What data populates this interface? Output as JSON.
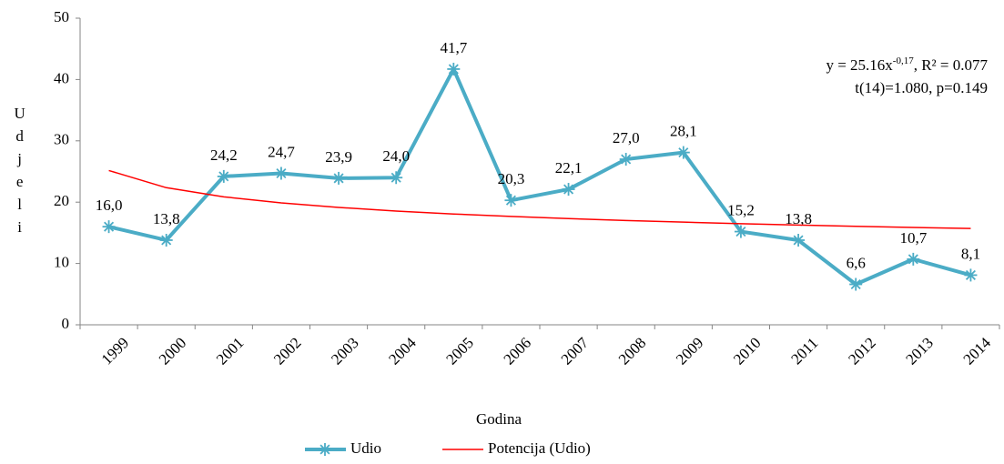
{
  "chart_data": {
    "type": "line",
    "xlabel": "Godina",
    "ylabel": "Udjeli",
    "categories": [
      "1999",
      "2000",
      "2001",
      "2002",
      "2003",
      "2004",
      "2005",
      "2006",
      "2007",
      "2008",
      "2009",
      "2010",
      "2011",
      "2012",
      "2013",
      "2014"
    ],
    "series": [
      {
        "name": "Udio",
        "color": "#4bacc6",
        "marker": "asterisk",
        "values": [
          16.0,
          13.8,
          24.2,
          24.7,
          23.9,
          24.0,
          41.7,
          20.3,
          22.1,
          27.0,
          28.1,
          15.2,
          13.8,
          6.6,
          10.7,
          8.1
        ],
        "value_labels": [
          "16,0",
          "13,8",
          "24,2",
          "24,7",
          "23,9",
          "24,0",
          "41,7",
          "20,3",
          "22,1",
          "27,0",
          "28,1",
          "15,2",
          "13,8",
          "6,6",
          "10,7",
          "8,1"
        ]
      },
      {
        "name": "Potencija (Udio)",
        "color": "#ff0000",
        "marker": "none",
        "values": [
          25.16,
          22.36,
          20.87,
          19.88,
          19.14,
          18.55,
          18.07,
          17.67,
          17.32,
          17.01,
          16.74,
          16.49,
          16.27,
          16.06,
          15.88,
          15.71
        ]
      }
    ],
    "annotations": [
      {
        "parts": [
          "y = 25.16x",
          "-0,17",
          ", R² = 0.077"
        ]
      },
      {
        "parts": [
          "t(14)=1.080, p=0.149"
        ]
      }
    ],
    "ylim": [
      0,
      50
    ],
    "yticks": [
      0,
      10,
      20,
      30,
      40,
      50
    ],
    "grid": false,
    "legend": "bottom"
  }
}
